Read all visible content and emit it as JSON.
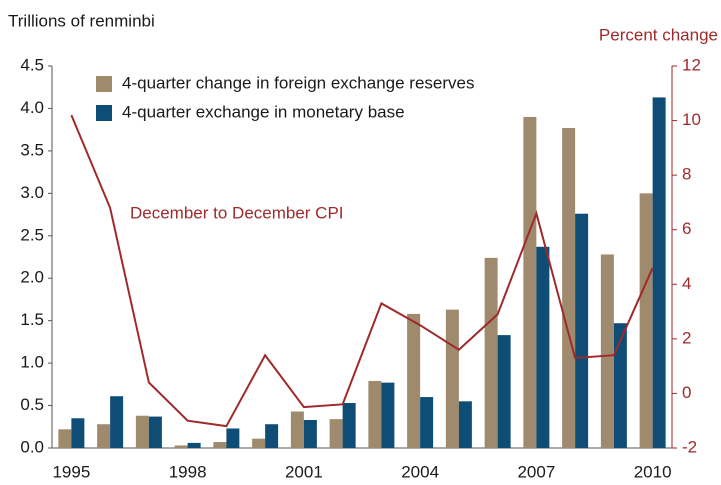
{
  "chart_data": {
    "type": "bar",
    "y_label": "Trillions of renminbi",
    "y2_label": "Percent change",
    "annotation": "December to December CPI",
    "categories": [
      "1995",
      null,
      null,
      "1998",
      null,
      null,
      "2001",
      null,
      null,
      "2004",
      null,
      null,
      "2007",
      null,
      null,
      "2010"
    ],
    "series": [
      {
        "name": "4-quarter change in foreign exchange reserves",
        "color": "#a08a6e",
        "type": "bar",
        "values": [
          0.22,
          0.28,
          0.38,
          0.03,
          0.07,
          0.11,
          0.43,
          0.34,
          0.79,
          1.58,
          1.63,
          2.24,
          3.9,
          3.77,
          2.28,
          3.0
        ]
      },
      {
        "name": "4-quarter exchange in monetary base",
        "color": "#0e4d75",
        "type": "bar",
        "values": [
          0.35,
          0.61,
          0.37,
          0.06,
          0.23,
          0.28,
          0.33,
          0.53,
          0.77,
          0.6,
          0.55,
          1.33,
          2.37,
          2.76,
          1.47,
          4.13
        ]
      },
      {
        "color": "#9e2a2b",
        "type": "line",
        "axis": "y2",
        "values": [
          10.2,
          6.8,
          0.4,
          -1.0,
          -1.2,
          1.4,
          -0.5,
          -0.4,
          3.3,
          2.5,
          1.6,
          2.9,
          6.6,
          1.3,
          1.4,
          4.6
        ]
      }
    ],
    "ylim": [
      0,
      4.5
    ],
    "yticks": [
      {
        "value": 0,
        "label": "0.0"
      },
      0.5,
      {
        "value": 1,
        "label": "1.0"
      },
      1.5,
      {
        "value": 2,
        "label": "2.0"
      },
      2.5,
      {
        "value": 3,
        "label": "3.0"
      },
      3.5,
      {
        "value": 4,
        "label": "4.0"
      },
      4.5
    ],
    "y2lim": [
      -2,
      12
    ],
    "y2ticks": [
      -2,
      0,
      2,
      4,
      6,
      8,
      10,
      12
    ],
    "grid": false,
    "legend": "upper left"
  }
}
